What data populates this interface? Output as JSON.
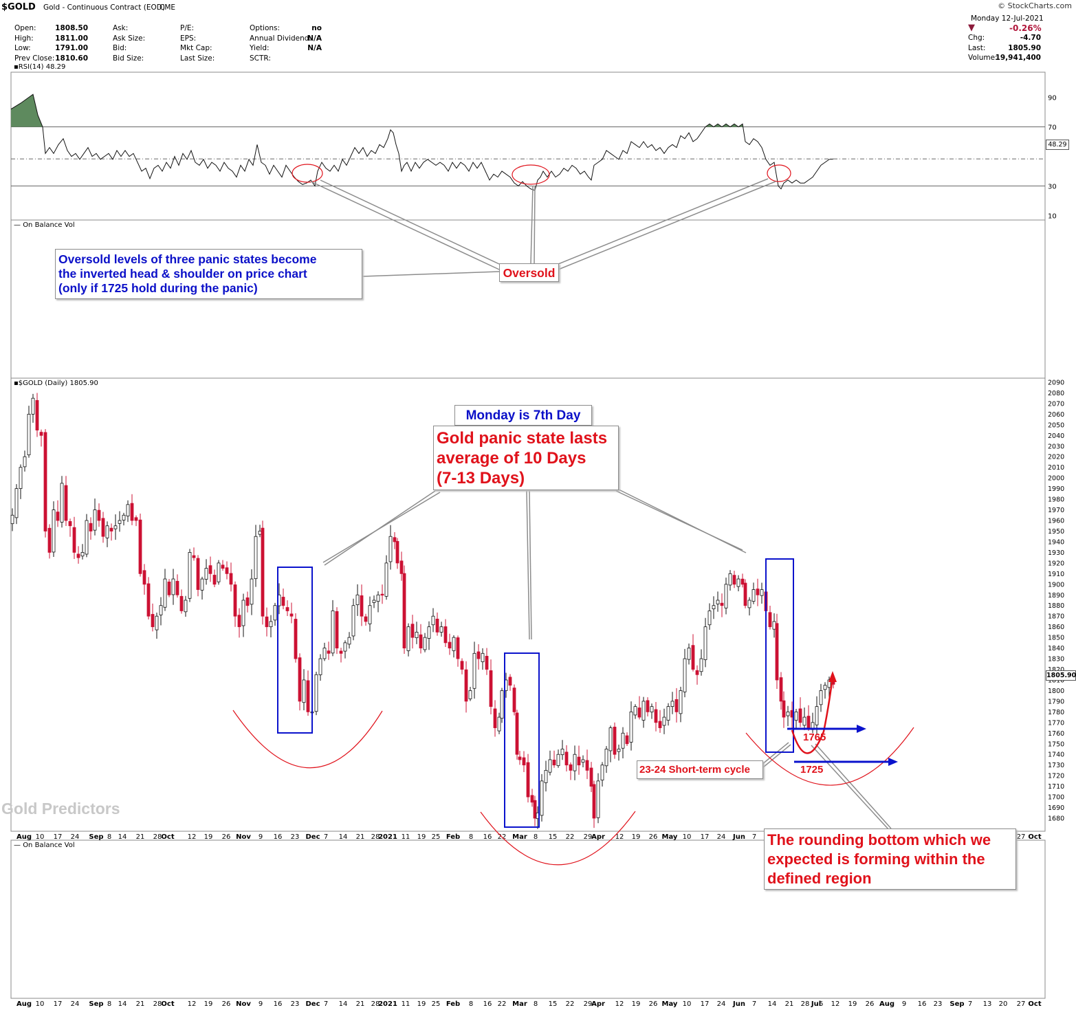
{
  "header": {
    "symbol": "$GOLD",
    "description": "Gold - Continuous Contract (EOD)",
    "exchange": "CME",
    "watermark": "© StockCharts.com",
    "date": "Monday  12-Jul-2021",
    "pct_change": "-0.26%",
    "fields_left": [
      {
        "label": "Open:",
        "value": "1808.50"
      },
      {
        "label": "High:",
        "value": "1811.00"
      },
      {
        "label": "Low:",
        "value": "1791.00"
      },
      {
        "label": "Prev Close:",
        "value": "1810.60"
      }
    ],
    "fields_mid1": [
      {
        "label": "Ask:",
        "value": ""
      },
      {
        "label": "Ask Size:",
        "value": ""
      },
      {
        "label": "Bid:",
        "value": ""
      },
      {
        "label": "Bid Size:",
        "value": ""
      }
    ],
    "fields_mid2": [
      {
        "label": "P/E:",
        "value": ""
      },
      {
        "label": "EPS:",
        "value": ""
      },
      {
        "label": "Mkt Cap:",
        "value": ""
      },
      {
        "label": "Last Size:",
        "value": ""
      }
    ],
    "fields_mid3": [
      {
        "label": "Options:",
        "value": "no"
      },
      {
        "label": "Annual Dividend:",
        "value": "N/A"
      },
      {
        "label": "Yield:",
        "value": "N/A"
      },
      {
        "label": "SCTR:",
        "value": ""
      }
    ],
    "fields_right": [
      {
        "label": "Chg:",
        "value": "-4.70"
      },
      {
        "label": "Last:",
        "value": "1805.90"
      },
      {
        "label": "Volume:",
        "value": "19,941,400"
      }
    ]
  },
  "rsi_panel": {
    "legend": "RSI(14) 48.29",
    "current_value": "48.29",
    "ticks": [
      "90",
      "70",
      "30",
      "10"
    ]
  },
  "obv_label_1": "On Balance Vol",
  "obv_label_2": "On Balance Vol",
  "price_panel": {
    "legend": "$GOLD (Daily) 1805.90",
    "current_value": "1805.90",
    "ticks": [
      "2090",
      "2080",
      "2070",
      "2060",
      "2050",
      "2040",
      "2030",
      "2020",
      "2010",
      "2000",
      "1990",
      "1980",
      "1970",
      "1960",
      "1950",
      "1940",
      "1930",
      "1920",
      "1910",
      "1900",
      "1890",
      "1880",
      "1870",
      "1860",
      "1850",
      "1840",
      "1830",
      "1820",
      "1810",
      "1800",
      "1790",
      "1780",
      "1770",
      "1760",
      "1750",
      "1740",
      "1730",
      "1720",
      "1710",
      "1700",
      "1690",
      "1680"
    ]
  },
  "x_axis_labels": [
    "Aug",
    "10",
    "17",
    "24",
    "Sep",
    "8",
    "14",
    "21",
    "28",
    "Oct",
    "12",
    "19",
    "26",
    "Nov",
    "9",
    "16",
    "23",
    "Dec",
    "7",
    "14",
    "21",
    "28",
    "2021",
    "11",
    "19",
    "25",
    "Feb",
    "8",
    "16",
    "22",
    "Mar",
    "8",
    "15",
    "22",
    "29",
    "Apr",
    "12",
    "19",
    "26",
    "May",
    "10",
    "17",
    "24",
    "Jun",
    "7",
    "14",
    "21",
    "28",
    "Jul",
    "6",
    "12",
    "19",
    "26",
    "Aug",
    "9",
    "16",
    "23",
    "Sep",
    "7",
    "13",
    "20",
    "27",
    "Oct"
  ],
  "annotations": {
    "oversold_text": "Oversold levels of three panic states become the inverted head & shoulder on price chart (only if 1725 hold during the panic)",
    "oversold_line1": "Oversold levels of three panic states become",
    "oversold_line2": "the inverted head & shoulder on price chart",
    "oversold_line3": "(only if 1725 hold during the panic)",
    "oversold_label": "Oversold",
    "monday_label": "Monday is 7th Day",
    "panic_line1": "Gold panic state lasts",
    "panic_line2": "average of 10 Days",
    "panic_line3": "(7-13 Days)",
    "cycle_label": "23-24 Short-term cycle",
    "level_1765": "1765",
    "level_1725": "1725",
    "rounding_line1": "The rounding bottom which we",
    "rounding_line2": "expected is forming within the",
    "rounding_line3": "defined region",
    "brand": "Gold Predictors"
  },
  "colors": {
    "up_candle": "#ffffff",
    "down_candle": "#cc1133",
    "box": "#0a12cc",
    "arc": "#e0121b",
    "arrow": "#0a12cc",
    "rsi_fill": "#5e8a5e"
  },
  "chart_data": [
    {
      "type": "line",
      "title": "RSI(14) 48.29",
      "ylim": [
        0,
        100
      ],
      "reference_lines": [
        70,
        30
      ],
      "x": [
        "Aug",
        "Sep",
        "Oct",
        "Nov",
        "Dec",
        "2021",
        "Feb",
        "Mar",
        "Apr",
        "May",
        "Jun",
        "Jul"
      ],
      "series": [
        {
          "name": "RSI(14)",
          "values": [
            88,
            52,
            44,
            48,
            33,
            68,
            30,
            38,
            55,
            74,
            30,
            48.29
          ]
        }
      ]
    },
    {
      "type": "candlestick",
      "title": "$GOLD (Daily) 1805.90",
      "ylim": [
        1670,
        2090
      ],
      "x": [
        "Aug",
        "Sep",
        "Oct",
        "Nov",
        "Dec",
        "2021",
        "Feb",
        "Mar",
        "Apr",
        "May",
        "Jun",
        "Jul"
      ],
      "series": [
        {
          "name": "$GOLD",
          "values": [
            1970,
            1940,
            1900,
            1880,
            1790,
            1930,
            1830,
            1700,
            1720,
            1860,
            1900,
            1805.9
          ]
        }
      ]
    }
  ]
}
